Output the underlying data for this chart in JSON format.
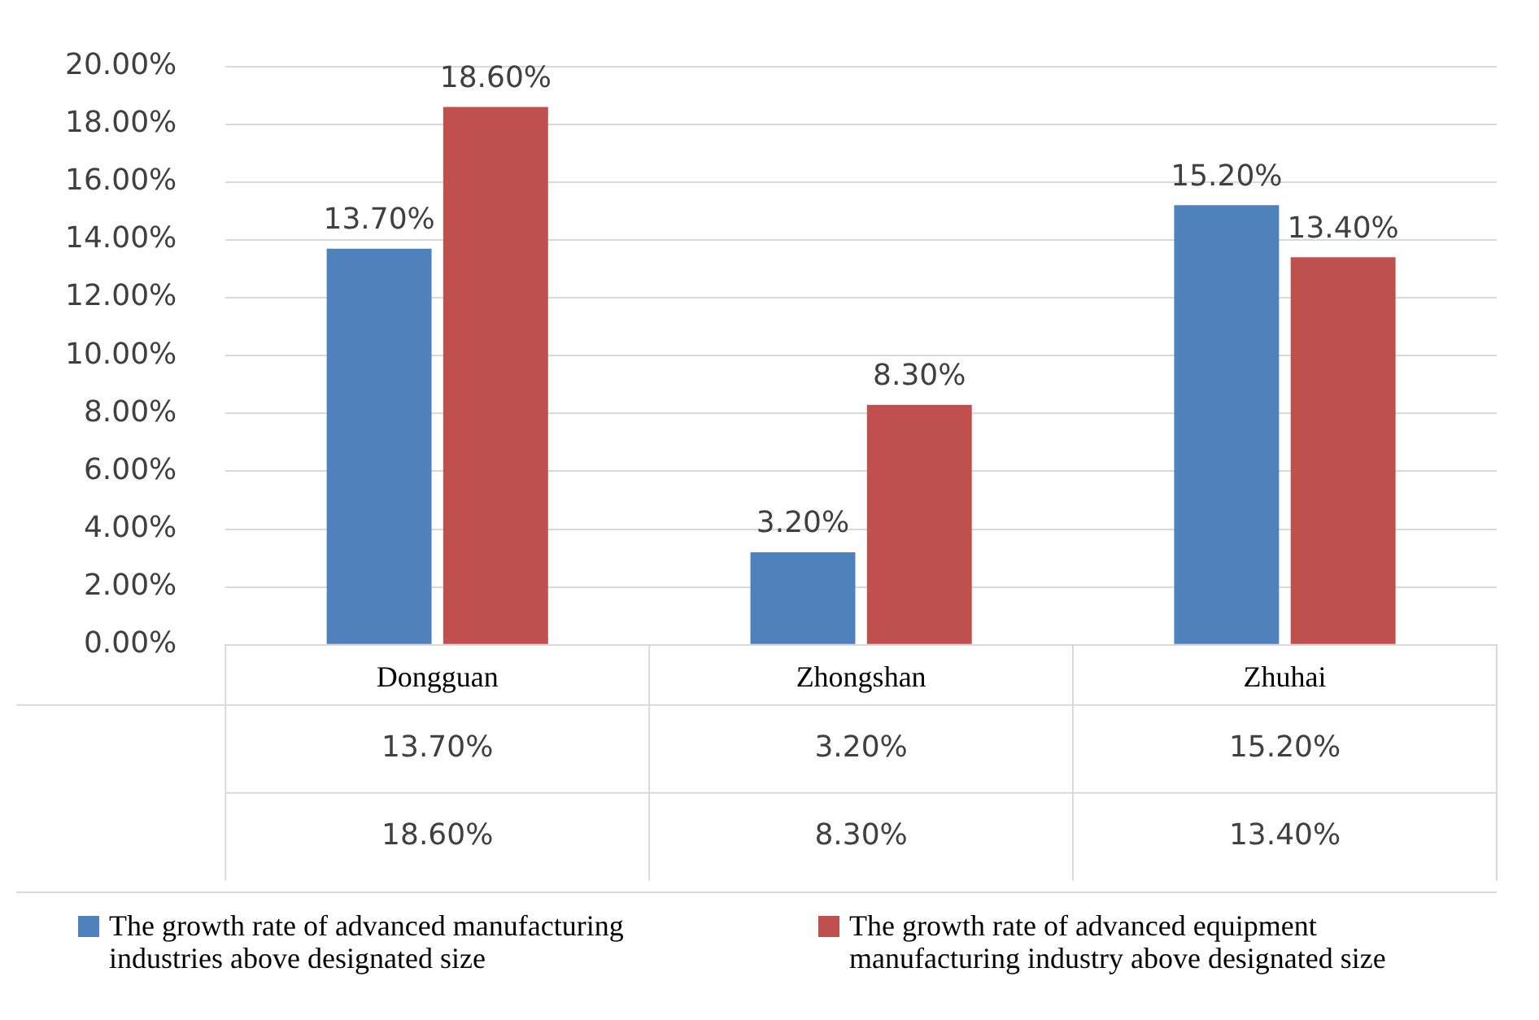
{
  "chart_data": {
    "type": "bar",
    "categories": [
      "Dongguan",
      "Zhongshan",
      "Zhuhai"
    ],
    "series": [
      {
        "name": "The growth rate of advanced manufacturing industries above designated size",
        "color": "#4f81bd",
        "values": [
          13.7,
          3.2,
          15.2
        ],
        "value_labels": [
          "13.70%",
          "3.20%",
          "15.20%"
        ]
      },
      {
        "name": "The growth rate of advanced equipment manufacturing industry above designated size",
        "color": "#c0504d",
        "values": [
          18.6,
          8.3,
          13.4
        ],
        "value_labels": [
          "18.60%",
          "8.30%",
          "13.40%"
        ]
      }
    ],
    "ylim": [
      0,
      20
    ],
    "yticks": [
      {
        "value": 0,
        "label": "0.00%"
      },
      {
        "value": 2,
        "label": "2.00%"
      },
      {
        "value": 4,
        "label": "4.00%"
      },
      {
        "value": 6,
        "label": "6.00%"
      },
      {
        "value": 8,
        "label": "8.00%"
      },
      {
        "value": 10,
        "label": "10.00%"
      },
      {
        "value": 12,
        "label": "12.00%"
      },
      {
        "value": 14,
        "label": "14.00%"
      },
      {
        "value": 16,
        "label": "16.00%"
      },
      {
        "value": 18,
        "label": "18.00%"
      },
      {
        "value": 20,
        "label": "20.00%"
      }
    ],
    "grid": "y",
    "legend": "bottom"
  }
}
